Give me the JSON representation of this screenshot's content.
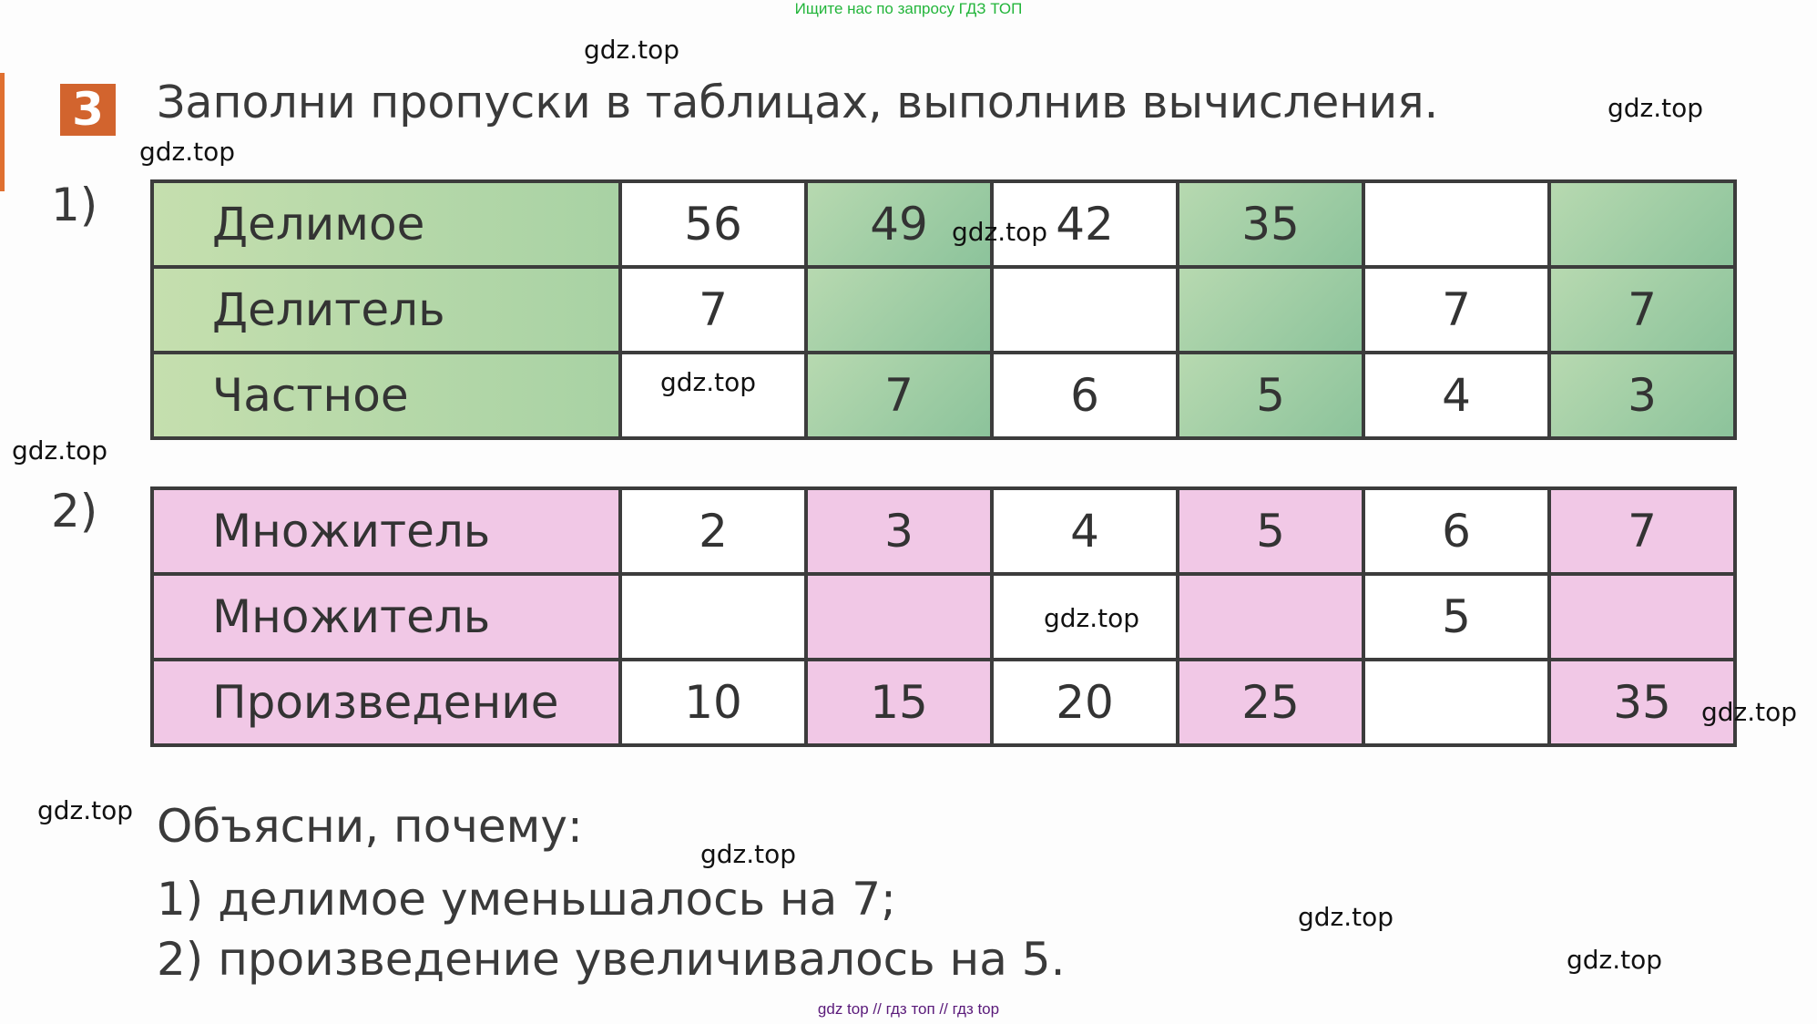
{
  "header_note": "Ищите нас по запросу ГДЗ ТОП",
  "footer_note": "gdz top  //  гдз топ  //  гдз top",
  "task": {
    "number": "3",
    "title": "Заполни пропуски в таблицах, выполнив вычисления."
  },
  "table1": {
    "marker": "1)",
    "rows": [
      {
        "label": "Делимое",
        "cells": [
          "56",
          "49",
          "42",
          "35",
          "",
          ""
        ]
      },
      {
        "label": "Делитель",
        "cells": [
          "7",
          "",
          "",
          "",
          "7",
          "7"
        ]
      },
      {
        "label": "Частное",
        "cells": [
          "",
          "7",
          "6",
          "5",
          "4",
          "3"
        ]
      }
    ]
  },
  "table2": {
    "marker": "2)",
    "rows": [
      {
        "label": "Множитель",
        "cells": [
          "2",
          "3",
          "4",
          "5",
          "6",
          "7"
        ]
      },
      {
        "label": "Множитель",
        "cells": [
          "",
          "",
          "",
          "",
          "5",
          ""
        ]
      },
      {
        "label": "Произведение",
        "cells": [
          "10",
          "15",
          "20",
          "25",
          "",
          "35"
        ]
      }
    ]
  },
  "explain": {
    "heading": "Объясни, почему:",
    "items": [
      "1) делимое уменьшалось на 7;",
      "2) произведение увеличивалось на 5."
    ]
  },
  "watermark": "gdz.top",
  "colors": {
    "green": "#a8d2a4",
    "pink": "#f1c8e6",
    "badge": "#d2642e"
  }
}
